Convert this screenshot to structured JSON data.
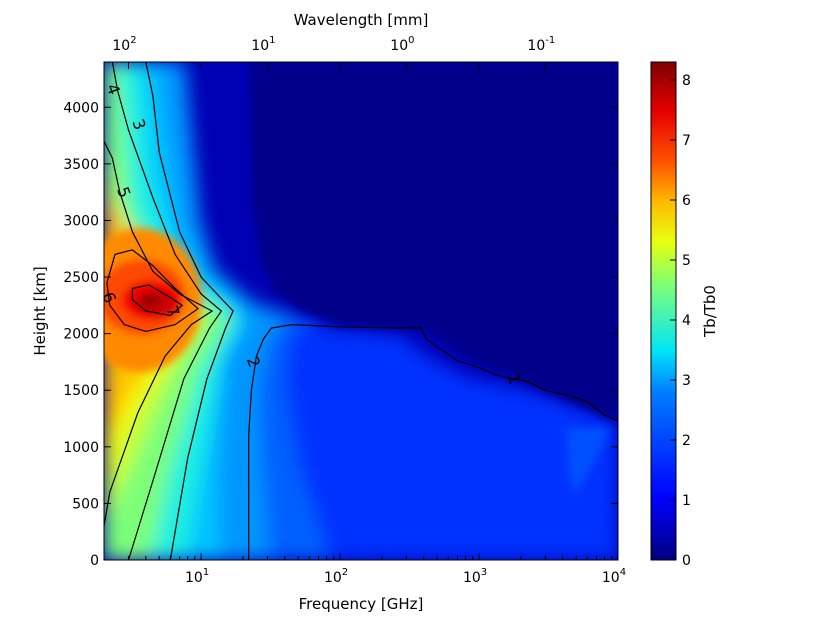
{
  "chart_data": {
    "type": "heatmap",
    "subtype": "filled-contour",
    "title": "",
    "xlabel": "Frequency [GHz]",
    "ylabel": "Height [km]",
    "top_xlabel": "Wavelength [mm]",
    "x_scale": "log",
    "xlim": [
      2,
      10000
    ],
    "ylim": [
      0,
      4400
    ],
    "x_ticks": [
      {
        "value": 10,
        "label": "10",
        "exp": "1"
      },
      {
        "value": 100,
        "label": "10",
        "exp": "2"
      },
      {
        "value": 1000,
        "label": "10",
        "exp": "3"
      },
      {
        "value": 10000,
        "label": "10",
        "exp": "4"
      }
    ],
    "top_ticks": [
      {
        "wavelength_mm": 100,
        "label": "10",
        "exp": "2"
      },
      {
        "wavelength_mm": 10,
        "label": "10",
        "exp": "1"
      },
      {
        "wavelength_mm": 1,
        "label": "10",
        "exp": "0"
      },
      {
        "wavelength_mm": 0.1,
        "label": "10",
        "exp": "-1"
      }
    ],
    "y_ticks": [
      "0",
      "500",
      "1000",
      "1500",
      "2000",
      "2500",
      "3000",
      "3500",
      "4000"
    ],
    "colorbar": {
      "label": "Tb/Tb0",
      "range": [
        0,
        8.3
      ],
      "ticks": [
        "0",
        "1",
        "2",
        "3",
        "4",
        "5",
        "6",
        "7",
        "8"
      ],
      "colormap": "jet"
    },
    "contour_lines": [
      {
        "level": 1,
        "label": "1",
        "label_at": {
          "x": 1800,
          "y": 1600
        },
        "points": [
          [
            380,
            2050
          ],
          [
            420,
            1950
          ],
          [
            500,
            1880
          ],
          [
            600,
            1820
          ],
          [
            700,
            1760
          ],
          [
            900,
            1720
          ],
          [
            1100,
            1680
          ],
          [
            1300,
            1640
          ],
          [
            1600,
            1610
          ],
          [
            2200,
            1580
          ],
          [
            3000,
            1500
          ],
          [
            4500,
            1450
          ],
          [
            6000,
            1400
          ],
          [
            8000,
            1280
          ],
          [
            10000,
            1230
          ]
        ]
      },
      {
        "level": 2,
        "label": "2",
        "label_at": {
          "x": 24,
          "y": 1750
        },
        "points": [
          [
            22,
            0
          ],
          [
            22,
            1100
          ],
          [
            23,
            1500
          ],
          [
            25,
            1800
          ],
          [
            28,
            1950
          ],
          [
            32,
            2050
          ],
          [
            45,
            2080
          ],
          [
            100,
            2060
          ],
          [
            250,
            2050
          ],
          [
            380,
            2050
          ]
        ]
      },
      {
        "level": 3,
        "label": "3",
        "label_at": {
          "x": 3.6,
          "y": 3850
        },
        "points": [
          [
            6,
            0
          ],
          [
            8,
            900
          ],
          [
            11,
            1600
          ],
          [
            15,
            2050
          ],
          [
            17,
            2200
          ],
          [
            13,
            2350
          ],
          [
            10,
            2500
          ],
          [
            7,
            2900
          ],
          [
            5,
            3600
          ],
          [
            4.5,
            4100
          ],
          [
            4,
            4400
          ]
        ]
      },
      {
        "level": 4,
        "label": "4",
        "label_at": {
          "x": 2.35,
          "y": 4160
        },
        "points": [
          [
            3,
            0
          ],
          [
            4.5,
            700
          ],
          [
            7.5,
            1600
          ],
          [
            11.5,
            2050
          ],
          [
            14,
            2200
          ],
          [
            10,
            2350
          ],
          [
            6.5,
            2700
          ],
          [
            4.5,
            3200
          ],
          [
            3,
            3800
          ],
          [
            2.5,
            4150
          ],
          [
            2.3,
            4400
          ]
        ]
      },
      {
        "level": 5,
        "label": "5",
        "label_at": {
          "x": 2.8,
          "y": 3250
        },
        "points": [
          [
            2,
            3700
          ],
          [
            2.3,
            3550
          ],
          [
            2.6,
            3250
          ],
          [
            3.2,
            2900
          ],
          [
            4.5,
            2550
          ],
          [
            7,
            2350
          ],
          [
            12,
            2200
          ],
          [
            8.5,
            2080
          ],
          [
            5.5,
            1800
          ],
          [
            3.5,
            1300
          ],
          [
            2.2,
            600
          ],
          [
            2,
            300
          ]
        ]
      },
      {
        "level": 6,
        "label": "6",
        "label_at": {
          "x": 2.2,
          "y": 2320
        },
        "points": [
          [
            2.1,
            2450
          ],
          [
            2.4,
            2700
          ],
          [
            3.2,
            2740
          ],
          [
            4.5,
            2600
          ],
          [
            6.5,
            2400
          ],
          [
            9.5,
            2220
          ],
          [
            6.5,
            2080
          ],
          [
            4,
            2020
          ],
          [
            2.8,
            2080
          ],
          [
            2.2,
            2250
          ],
          [
            2.1,
            2450
          ]
        ]
      },
      {
        "level": 7,
        "label": "7",
        "label_at": {
          "x": 6.3,
          "y": 2200
        },
        "points": [
          [
            3.2,
            2400
          ],
          [
            4.2,
            2430
          ],
          [
            6,
            2320
          ],
          [
            7.3,
            2250
          ],
          [
            6,
            2160
          ],
          [
            4,
            2200
          ],
          [
            3.2,
            2300
          ],
          [
            3.2,
            2400
          ]
        ]
      }
    ]
  }
}
